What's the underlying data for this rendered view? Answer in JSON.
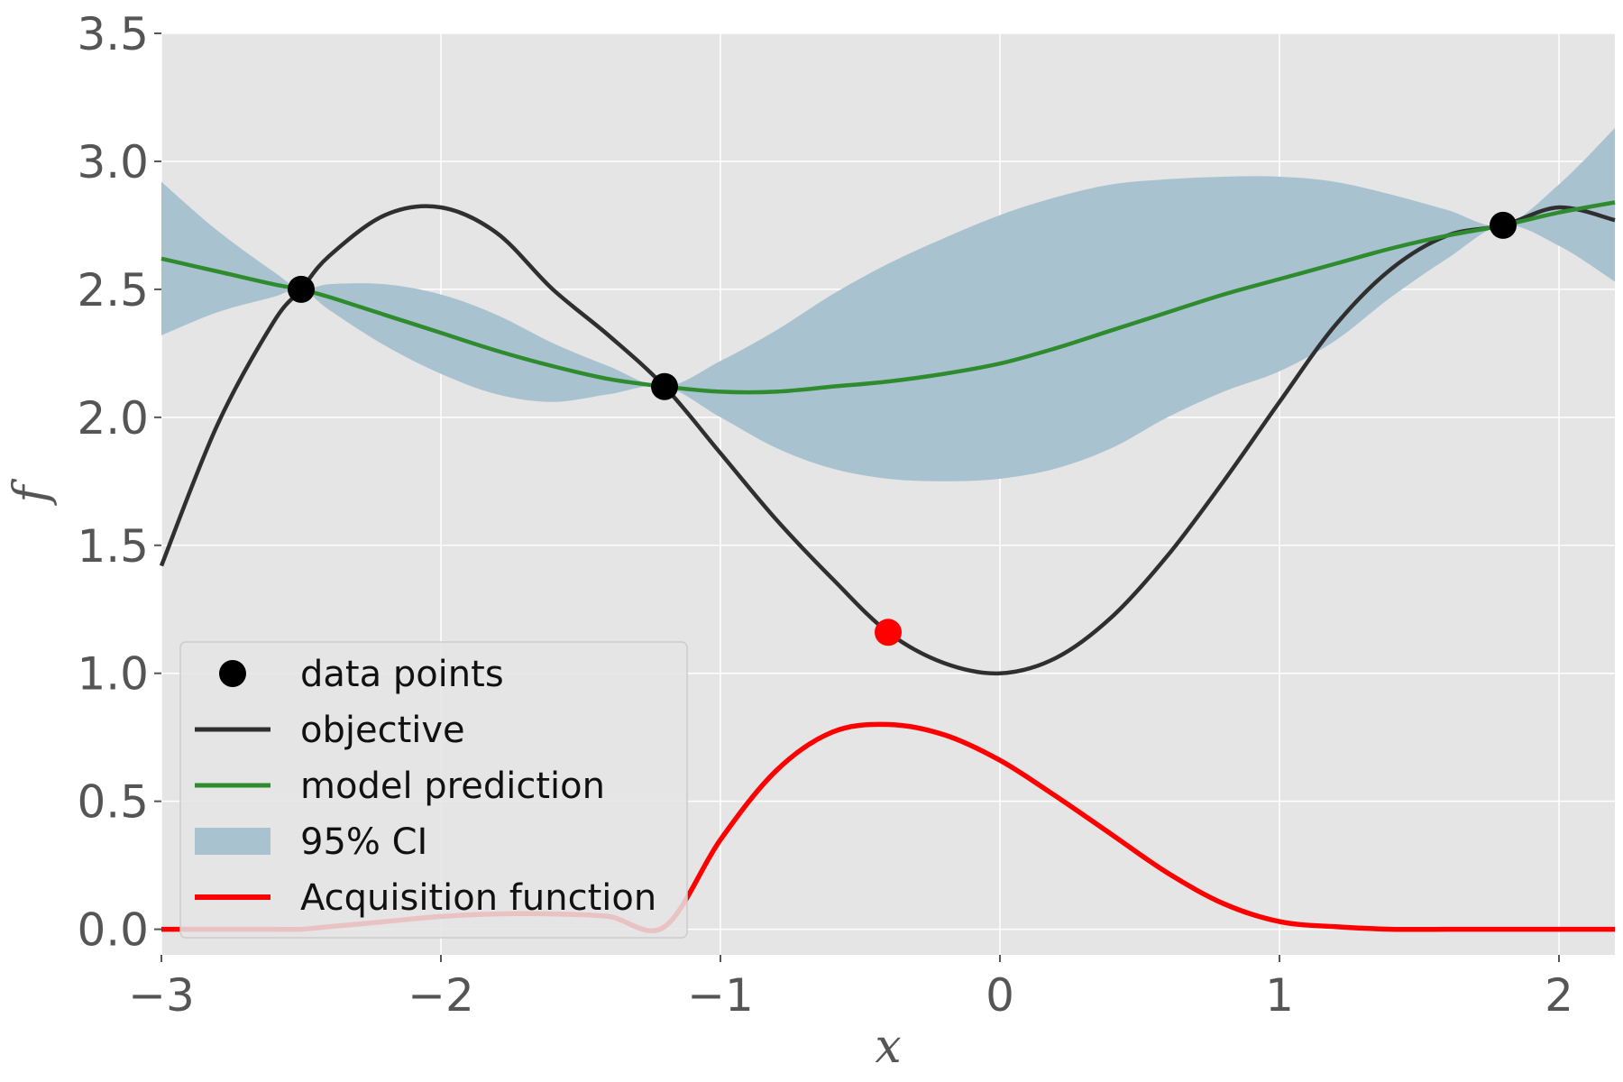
{
  "chart_data": {
    "type": "line",
    "title": "",
    "xlabel": "x",
    "ylabel": "f",
    "xlim": [
      -3,
      2.2
    ],
    "ylim": [
      -0.1,
      3.5
    ],
    "xticks": [
      -3,
      -2,
      -1,
      0,
      1,
      2
    ],
    "xtick_labels": [
      "−3",
      "−2",
      "−1",
      "0",
      "1",
      "2"
    ],
    "yticks": [
      0.0,
      0.5,
      1.0,
      1.5,
      2.0,
      2.5,
      3.0,
      3.5
    ],
    "ytick_labels": [
      "0.0",
      "0.5",
      "1.0",
      "1.5",
      "2.0",
      "2.5",
      "3.0",
      "3.5"
    ],
    "grid": true,
    "legend_position": "lower-left",
    "colors": {
      "axes_background": "#e5e5e5",
      "grid": "#ffffff",
      "objective": "#2f2f2f",
      "model_prediction": "#2e8b2e",
      "ci": "#a9c2cf",
      "acquisition": "#ff0000",
      "data_points": "#000000",
      "next_point": "#ff0000"
    },
    "legend": [
      {
        "label": "data points",
        "kind": "marker",
        "series": "data_points"
      },
      {
        "label": "objective",
        "kind": "line",
        "series": "objective"
      },
      {
        "label": "model prediction",
        "kind": "line",
        "series": "model_prediction"
      },
      {
        "label": "95% CI",
        "kind": "patch",
        "series": "ci"
      },
      {
        "label": "Acquisition function",
        "kind": "line",
        "series": "acquisition"
      }
    ],
    "data_points": {
      "x": [
        -2.5,
        -1.2,
        1.8
      ],
      "y": [
        2.5,
        2.12,
        2.75
      ]
    },
    "next_point": {
      "x": -0.4,
      "y": 1.16
    },
    "x": [
      -3.0,
      -2.8,
      -2.6,
      -2.5,
      -2.4,
      -2.2,
      -2.0,
      -1.8,
      -1.6,
      -1.4,
      -1.2,
      -1.0,
      -0.8,
      -0.6,
      -0.4,
      -0.2,
      0.0,
      0.2,
      0.4,
      0.6,
      0.8,
      1.0,
      1.2,
      1.4,
      1.6,
      1.8,
      2.0,
      2.2
    ],
    "series": [
      {
        "name": "objective",
        "values": [
          1.42,
          1.97,
          2.37,
          2.5,
          2.63,
          2.79,
          2.82,
          2.72,
          2.5,
          2.32,
          2.12,
          1.86,
          1.6,
          1.37,
          1.16,
          1.04,
          1.0,
          1.06,
          1.22,
          1.46,
          1.75,
          2.06,
          2.36,
          2.58,
          2.71,
          2.75,
          2.82,
          2.77
        ]
      },
      {
        "name": "model prediction",
        "values": [
          2.62,
          2.57,
          2.52,
          2.5,
          2.47,
          2.4,
          2.33,
          2.26,
          2.2,
          2.15,
          2.12,
          2.1,
          2.1,
          2.12,
          2.14,
          2.17,
          2.21,
          2.27,
          2.34,
          2.41,
          2.48,
          2.54,
          2.6,
          2.66,
          2.71,
          2.75,
          2.8,
          2.84
        ]
      },
      {
        "name": "95% CI upper",
        "values": [
          2.92,
          2.73,
          2.57,
          2.5,
          2.52,
          2.52,
          2.48,
          2.4,
          2.29,
          2.2,
          2.12,
          2.22,
          2.34,
          2.48,
          2.6,
          2.7,
          2.79,
          2.86,
          2.91,
          2.93,
          2.94,
          2.94,
          2.92,
          2.87,
          2.81,
          2.75,
          2.91,
          3.13
        ]
      },
      {
        "name": "95% CI lower",
        "values": [
          2.32,
          2.41,
          2.47,
          2.5,
          2.42,
          2.28,
          2.17,
          2.09,
          2.06,
          2.09,
          2.12,
          2.0,
          1.88,
          1.8,
          1.76,
          1.75,
          1.76,
          1.8,
          1.88,
          2.0,
          2.1,
          2.18,
          2.3,
          2.47,
          2.62,
          2.75,
          2.67,
          2.53
        ]
      },
      {
        "name": "Acquisition function",
        "values": [
          0.0,
          0.0,
          0.0,
          0.0,
          0.01,
          0.03,
          0.05,
          0.06,
          0.06,
          0.05,
          0.01,
          0.35,
          0.62,
          0.77,
          0.8,
          0.76,
          0.66,
          0.52,
          0.37,
          0.22,
          0.1,
          0.03,
          0.01,
          0.0,
          0.0,
          0.0,
          0.0,
          0.0
        ]
      }
    ]
  }
}
